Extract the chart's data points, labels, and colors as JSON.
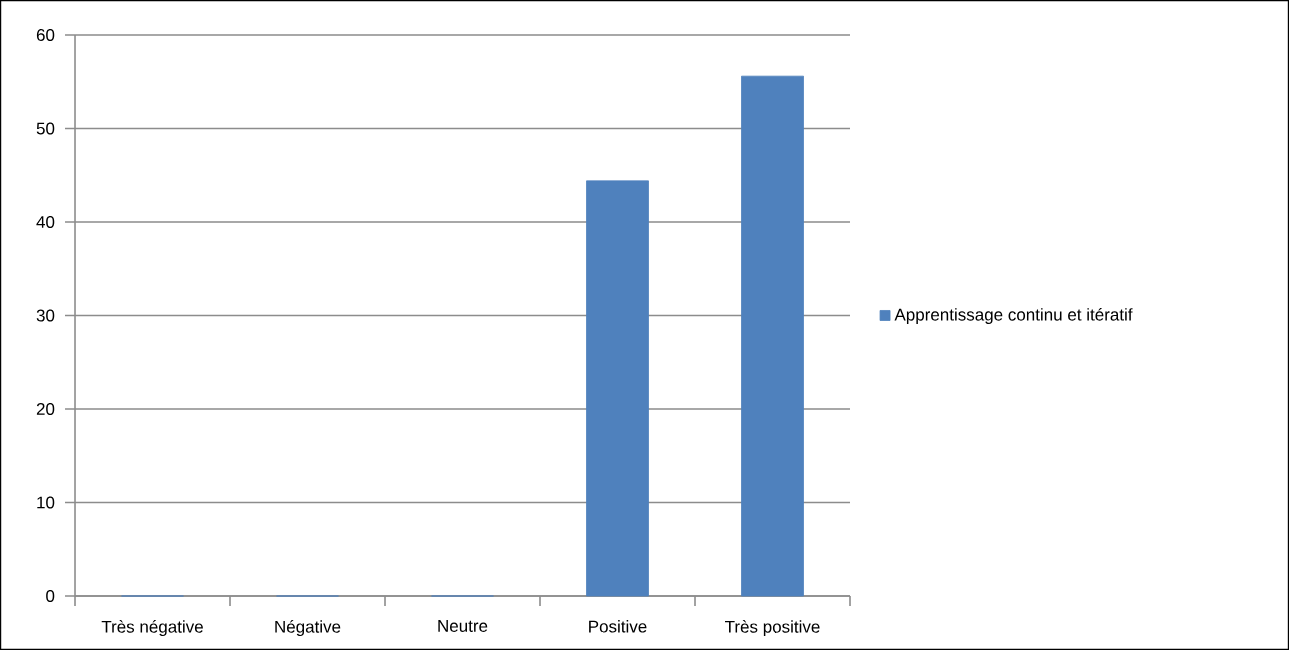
{
  "chart_data": {
    "type": "bar",
    "categories": [
      "Très négative",
      "Négative",
      "Neutre",
      "Positive",
      "Très positive"
    ],
    "series": [
      {
        "name": "Apprentissage continu et itératif",
        "color": "#4f81bd",
        "values": [
          0,
          0,
          0,
          44.4,
          55.6
        ]
      }
    ],
    "ylim": [
      0,
      60
    ],
    "yticks": [
      0,
      10,
      20,
      30,
      40,
      50,
      60
    ],
    "grid": "y",
    "legend": "right"
  }
}
